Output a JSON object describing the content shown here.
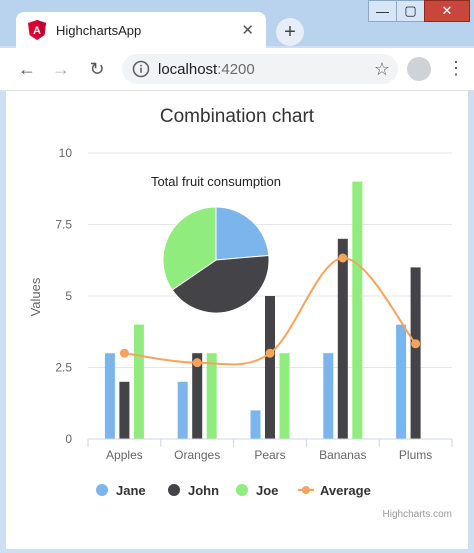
{
  "browser": {
    "tab_title": "HighchartsApp",
    "tab_close": "✕",
    "new_tab": "+",
    "url_host": "localhost",
    "url_port": ":4200",
    "back": "←",
    "forward": "→",
    "reload": "↻",
    "star": "☆",
    "menu": "⋮",
    "minimize": "—",
    "maximize": "▢",
    "close": "✕",
    "logo_letter": "A"
  },
  "chart_data": {
    "type": "bar",
    "title": "Combination chart",
    "ylabel": "Values",
    "xlabel": "",
    "categories": [
      "Apples",
      "Oranges",
      "Pears",
      "Bananas",
      "Plums"
    ],
    "ylim": [
      0,
      10
    ],
    "yticks": [
      0,
      2.5,
      5,
      7.5,
      10
    ],
    "ytick_labels": [
      "0",
      "2.5",
      "5",
      "7.5",
      "10"
    ],
    "series": [
      {
        "name": "Jane",
        "type": "column",
        "color": "#7cb5ec",
        "values": [
          3,
          2,
          1,
          3,
          4
        ]
      },
      {
        "name": "John",
        "type": "column",
        "color": "#434348",
        "values": [
          2,
          3,
          5,
          7,
          6
        ]
      },
      {
        "name": "Joe",
        "type": "column",
        "color": "#90ed7d",
        "values": [
          4,
          3,
          3,
          9,
          0
        ]
      },
      {
        "name": "Average",
        "type": "spline",
        "color": "#f7a35c",
        "values": [
          3,
          2.67,
          3,
          6.33,
          3.33
        ]
      }
    ],
    "pie": {
      "title": "Total fruit consumption",
      "slices": [
        {
          "name": "Jane",
          "value": 13,
          "color": "#7cb5ec"
        },
        {
          "name": "John",
          "value": 23,
          "color": "#434348"
        },
        {
          "name": "Joe",
          "value": 19,
          "color": "#90ed7d"
        }
      ]
    },
    "legend_position": "bottom",
    "credits": "Highcharts.com",
    "grid": true
  }
}
